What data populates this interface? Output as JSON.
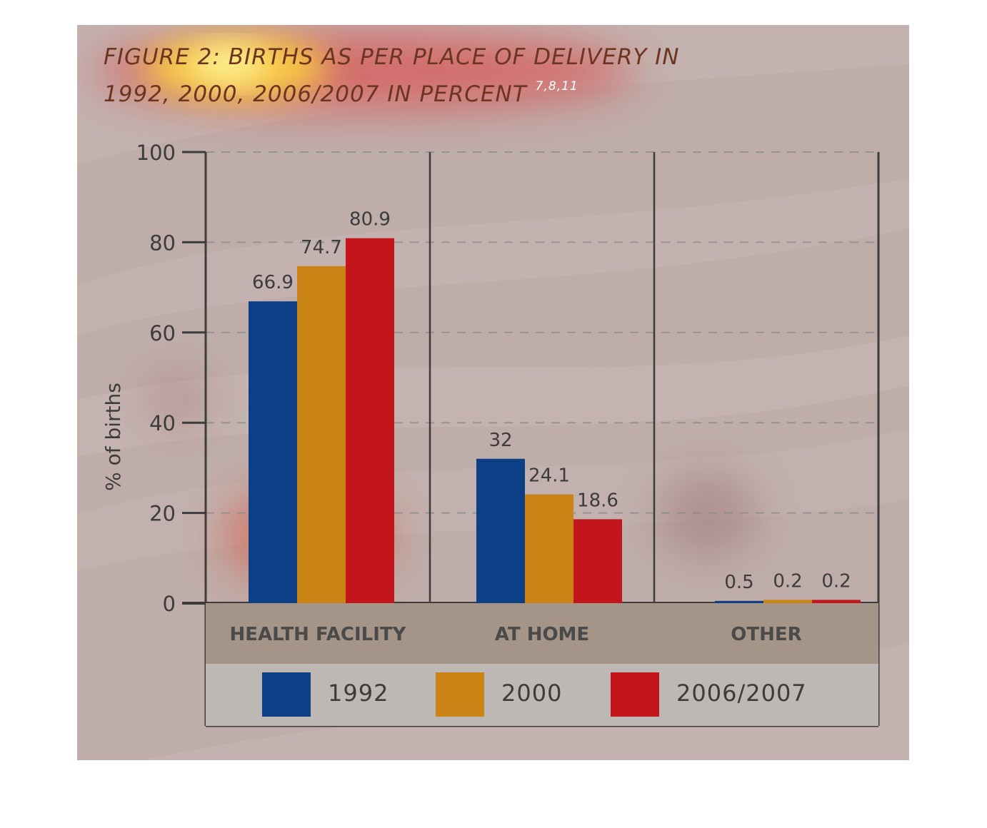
{
  "chart_data": {
    "type": "bar",
    "title_line1": "FIGURE 2: BIRTHS AS PER PLACE OF DELIVERY IN",
    "title_line2": "1992, 2000, 2006/2007 IN PERCENT",
    "title_superscript": "7,8,11",
    "ylabel": "% of births",
    "xlabel": "",
    "ylim": [
      0,
      100
    ],
    "yticks": [
      0,
      20,
      40,
      60,
      80,
      100
    ],
    "grid": true,
    "legend_position": "bottom",
    "categories": [
      "HEALTH FACILITY",
      "AT HOME",
      "OTHER"
    ],
    "series": [
      {
        "name": "1992",
        "color": "#0c3f86",
        "values": [
          66.9,
          32,
          0.5
        ],
        "labels": [
          "66.9",
          "32",
          "0.5"
        ]
      },
      {
        "name": "2000",
        "color": "#c98415",
        "values": [
          74.7,
          24.1,
          0.2
        ],
        "labels": [
          "74.7",
          "24.1",
          "0.2"
        ]
      },
      {
        "name": "2006/2007",
        "color": "#c3161c",
        "values": [
          80.9,
          18.6,
          0.2
        ],
        "labels": [
          "80.9",
          "18.6",
          "0.2"
        ]
      }
    ]
  },
  "colors": {
    "background": "#bfadaa",
    "category_band": "#a59588",
    "legend_band": "#bdb8b3",
    "axis": "#3c3c3c",
    "gridline": "#8a8a8a"
  }
}
